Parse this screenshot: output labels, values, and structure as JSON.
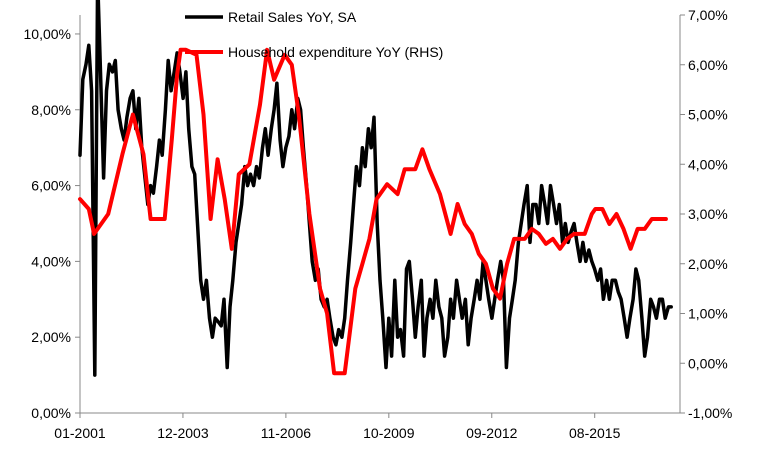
{
  "chart_data": {
    "type": "line",
    "x_ticks": [
      "01-2001",
      "12-2003",
      "11-2006",
      "10-2009",
      "09-2012",
      "08-2015"
    ],
    "y_left": {
      "ticks": [
        "0,00%",
        "2,00%",
        "4,00%",
        "6,00%",
        "8,00%",
        "10,00%"
      ],
      "range": [
        0,
        10.5
      ]
    },
    "y_right": {
      "ticks": [
        "-1,00%",
        "0,00%",
        "1,00%",
        "2,00%",
        "3,00%",
        "4,00%",
        "5,00%",
        "6,00%",
        "7,00%"
      ],
      "range": [
        -1,
        7
      ]
    },
    "grid": false,
    "legend_position": "top-center",
    "series": [
      {
        "name": "Retail Sales YoY, SA",
        "axis": "left",
        "color": "#000000",
        "points": [
          [
            2001.0,
            6.8
          ],
          [
            2001.08,
            8.8
          ],
          [
            2001.17,
            9.2
          ],
          [
            2001.25,
            9.7
          ],
          [
            2001.33,
            8.5
          ],
          [
            2001.42,
            1.0
          ],
          [
            2001.5,
            11.5
          ],
          [
            2001.58,
            9.0
          ],
          [
            2001.67,
            6.2
          ],
          [
            2001.75,
            8.5
          ],
          [
            2001.83,
            9.2
          ],
          [
            2001.92,
            9.0
          ],
          [
            2002.0,
            9.3
          ],
          [
            2002.08,
            8.0
          ],
          [
            2002.17,
            7.5
          ],
          [
            2002.25,
            7.2
          ],
          [
            2002.33,
            7.8
          ],
          [
            2002.42,
            8.3
          ],
          [
            2002.5,
            8.5
          ],
          [
            2002.58,
            7.5
          ],
          [
            2002.67,
            8.3
          ],
          [
            2002.75,
            7.0
          ],
          [
            2002.83,
            6.3
          ],
          [
            2002.92,
            5.5
          ],
          [
            2003.0,
            6.0
          ],
          [
            2003.08,
            5.8
          ],
          [
            2003.17,
            6.5
          ],
          [
            2003.25,
            7.2
          ],
          [
            2003.33,
            6.8
          ],
          [
            2003.42,
            8.0
          ],
          [
            2003.5,
            9.3
          ],
          [
            2003.58,
            8.5
          ],
          [
            2003.67,
            9.0
          ],
          [
            2003.75,
            9.5
          ],
          [
            2003.83,
            9.0
          ],
          [
            2003.92,
            8.3
          ],
          [
            2004.0,
            9.0
          ],
          [
            2004.08,
            7.5
          ],
          [
            2004.17,
            6.5
          ],
          [
            2004.25,
            6.3
          ],
          [
            2004.33,
            5.0
          ],
          [
            2004.42,
            3.5
          ],
          [
            2004.5,
            3.0
          ],
          [
            2004.58,
            3.5
          ],
          [
            2004.67,
            2.5
          ],
          [
            2004.75,
            2.0
          ],
          [
            2004.83,
            2.5
          ],
          [
            2004.92,
            2.4
          ],
          [
            2005.0,
            2.3
          ],
          [
            2005.08,
            3.0
          ],
          [
            2005.17,
            1.2
          ],
          [
            2005.25,
            2.8
          ],
          [
            2005.33,
            3.5
          ],
          [
            2005.42,
            4.5
          ],
          [
            2005.5,
            5.0
          ],
          [
            2005.58,
            5.5
          ],
          [
            2005.67,
            6.5
          ],
          [
            2005.75,
            6.0
          ],
          [
            2005.83,
            6.3
          ],
          [
            2005.92,
            6.0
          ],
          [
            2006.0,
            6.5
          ],
          [
            2006.08,
            6.2
          ],
          [
            2006.17,
            7.0
          ],
          [
            2006.25,
            7.5
          ],
          [
            2006.33,
            6.8
          ],
          [
            2006.42,
            7.5
          ],
          [
            2006.5,
            8.0
          ],
          [
            2006.58,
            8.7
          ],
          [
            2006.67,
            7.2
          ],
          [
            2006.75,
            6.5
          ],
          [
            2006.83,
            7.0
          ],
          [
            2006.92,
            7.3
          ],
          [
            2007.0,
            8.0
          ],
          [
            2007.08,
            7.5
          ],
          [
            2007.17,
            8.3
          ],
          [
            2007.25,
            8.0
          ],
          [
            2007.33,
            7.0
          ],
          [
            2007.42,
            6.0
          ],
          [
            2007.5,
            5.0
          ],
          [
            2007.58,
            4.0
          ],
          [
            2007.67,
            3.5
          ],
          [
            2007.75,
            3.8
          ],
          [
            2007.83,
            3.0
          ],
          [
            2007.92,
            2.8
          ],
          [
            2008.0,
            3.0
          ],
          [
            2008.08,
            2.5
          ],
          [
            2008.17,
            2.0
          ],
          [
            2008.25,
            1.8
          ],
          [
            2008.33,
            2.2
          ],
          [
            2008.42,
            2.0
          ],
          [
            2008.5,
            2.5
          ],
          [
            2008.58,
            3.5
          ],
          [
            2008.67,
            4.5
          ],
          [
            2008.75,
            5.5
          ],
          [
            2008.83,
            6.5
          ],
          [
            2008.92,
            6.0
          ],
          [
            2009.0,
            7.0
          ],
          [
            2009.08,
            6.5
          ],
          [
            2009.17,
            7.5
          ],
          [
            2009.25,
            7.0
          ],
          [
            2009.33,
            7.8
          ],
          [
            2009.42,
            5.0
          ],
          [
            2009.5,
            3.5
          ],
          [
            2009.58,
            2.5
          ],
          [
            2009.67,
            1.2
          ],
          [
            2009.75,
            2.5
          ],
          [
            2009.83,
            1.5
          ],
          [
            2009.92,
            3.5
          ],
          [
            2010.0,
            2.0
          ],
          [
            2010.08,
            2.2
          ],
          [
            2010.17,
            1.5
          ],
          [
            2010.25,
            3.8
          ],
          [
            2010.33,
            4.0
          ],
          [
            2010.42,
            3.0
          ],
          [
            2010.5,
            2.0
          ],
          [
            2010.58,
            2.8
          ],
          [
            2010.67,
            3.5
          ],
          [
            2010.75,
            1.5
          ],
          [
            2010.83,
            2.5
          ],
          [
            2010.92,
            3.0
          ],
          [
            2011.0,
            2.5
          ],
          [
            2011.08,
            3.5
          ],
          [
            2011.17,
            2.8
          ],
          [
            2011.25,
            2.5
          ],
          [
            2011.33,
            1.5
          ],
          [
            2011.42,
            2.0
          ],
          [
            2011.5,
            3.0
          ],
          [
            2011.58,
            2.5
          ],
          [
            2011.67,
            3.5
          ],
          [
            2011.75,
            3.0
          ],
          [
            2011.83,
            2.5
          ],
          [
            2011.92,
            3.0
          ],
          [
            2012.0,
            1.8
          ],
          [
            2012.08,
            2.5
          ],
          [
            2012.17,
            3.0
          ],
          [
            2012.25,
            3.5
          ],
          [
            2012.33,
            3.0
          ],
          [
            2012.42,
            4.0
          ],
          [
            2012.5,
            3.5
          ],
          [
            2012.58,
            3.0
          ],
          [
            2012.67,
            2.5
          ],
          [
            2012.75,
            3.0
          ],
          [
            2012.83,
            3.5
          ],
          [
            2012.92,
            4.0
          ],
          [
            2013.0,
            3.5
          ],
          [
            2013.08,
            1.2
          ],
          [
            2013.17,
            2.5
          ],
          [
            2013.25,
            3.0
          ],
          [
            2013.33,
            3.5
          ],
          [
            2013.42,
            4.5
          ],
          [
            2013.5,
            5.0
          ],
          [
            2013.58,
            5.5
          ],
          [
            2013.67,
            6.0
          ],
          [
            2013.75,
            4.5
          ],
          [
            2013.83,
            5.5
          ],
          [
            2013.92,
            5.5
          ],
          [
            2014.0,
            5.0
          ],
          [
            2014.08,
            6.0
          ],
          [
            2014.17,
            5.5
          ],
          [
            2014.25,
            5.0
          ],
          [
            2014.33,
            6.0
          ],
          [
            2014.42,
            5.5
          ],
          [
            2014.5,
            5.0
          ],
          [
            2014.58,
            5.5
          ],
          [
            2014.67,
            4.5
          ],
          [
            2014.75,
            5.0
          ],
          [
            2014.83,
            4.5
          ],
          [
            2014.92,
            4.8
          ],
          [
            2015.0,
            5.0
          ],
          [
            2015.08,
            4.5
          ],
          [
            2015.17,
            4.0
          ],
          [
            2015.25,
            4.5
          ],
          [
            2015.33,
            4.0
          ],
          [
            2015.42,
            4.3
          ],
          [
            2015.5,
            4.0
          ],
          [
            2015.58,
            3.8
          ],
          [
            2015.67,
            3.5
          ],
          [
            2015.75,
            3.8
          ],
          [
            2015.83,
            3.0
          ],
          [
            2015.92,
            3.5
          ],
          [
            2016.0,
            3.0
          ],
          [
            2016.08,
            3.5
          ],
          [
            2016.17,
            3.5
          ],
          [
            2016.25,
            3.2
          ],
          [
            2016.33,
            3.0
          ],
          [
            2016.42,
            2.5
          ],
          [
            2016.5,
            2.0
          ],
          [
            2016.58,
            2.5
          ],
          [
            2016.67,
            3.0
          ],
          [
            2016.75,
            3.8
          ],
          [
            2016.83,
            3.5
          ],
          [
            2016.92,
            2.5
          ],
          [
            2017.0,
            1.5
          ],
          [
            2017.08,
            2.0
          ],
          [
            2017.17,
            3.0
          ],
          [
            2017.25,
            2.8
          ],
          [
            2017.33,
            2.5
          ],
          [
            2017.42,
            3.0
          ],
          [
            2017.5,
            3.0
          ],
          [
            2017.58,
            2.5
          ],
          [
            2017.67,
            2.8
          ],
          [
            2017.75,
            2.8
          ]
        ]
      },
      {
        "name": "Household expenditure YoY (RHS)",
        "axis": "right",
        "color": "#ff0000",
        "points": [
          [
            2001.0,
            3.3
          ],
          [
            2001.25,
            3.1
          ],
          [
            2001.4,
            2.6
          ],
          [
            2001.8,
            3.0
          ],
          [
            2002.2,
            4.2
          ],
          [
            2002.5,
            5.0
          ],
          [
            2002.8,
            4.2
          ],
          [
            2003.0,
            2.9
          ],
          [
            2003.4,
            2.9
          ],
          [
            2003.6,
            4.5
          ],
          [
            2003.75,
            5.8
          ],
          [
            2003.85,
            6.3
          ],
          [
            2004.0,
            6.3
          ],
          [
            2004.3,
            6.2
          ],
          [
            2004.5,
            5.0
          ],
          [
            2004.7,
            2.9
          ],
          [
            2004.9,
            4.1
          ],
          [
            2005.1,
            3.3
          ],
          [
            2005.3,
            2.3
          ],
          [
            2005.5,
            3.8
          ],
          [
            2005.8,
            4.0
          ],
          [
            2006.1,
            5.2
          ],
          [
            2006.3,
            6.3
          ],
          [
            2006.5,
            5.7
          ],
          [
            2006.8,
            6.2
          ],
          [
            2007.0,
            6.0
          ],
          [
            2007.2,
            5.0
          ],
          [
            2007.5,
            3.0
          ],
          [
            2007.8,
            1.5
          ],
          [
            2008.0,
            1.0
          ],
          [
            2008.2,
            -0.2
          ],
          [
            2008.5,
            -0.2
          ],
          [
            2008.8,
            1.5
          ],
          [
            2009.0,
            2.0
          ],
          [
            2009.2,
            2.5
          ],
          [
            2009.4,
            3.3
          ],
          [
            2009.7,
            3.6
          ],
          [
            2010.0,
            3.4
          ],
          [
            2010.2,
            3.9
          ],
          [
            2010.5,
            3.9
          ],
          [
            2010.7,
            4.3
          ],
          [
            2010.9,
            3.9
          ],
          [
            2011.2,
            3.4
          ],
          [
            2011.5,
            2.6
          ],
          [
            2011.7,
            3.2
          ],
          [
            2011.9,
            2.8
          ],
          [
            2012.1,
            2.6
          ],
          [
            2012.3,
            2.2
          ],
          [
            2012.5,
            2.0
          ],
          [
            2012.7,
            1.5
          ],
          [
            2012.9,
            1.3
          ],
          [
            2013.1,
            2.0
          ],
          [
            2013.3,
            2.5
          ],
          [
            2013.6,
            2.5
          ],
          [
            2013.8,
            2.7
          ],
          [
            2014.0,
            2.6
          ],
          [
            2014.2,
            2.4
          ],
          [
            2014.4,
            2.5
          ],
          [
            2014.6,
            2.3
          ],
          [
            2014.8,
            2.5
          ],
          [
            2015.0,
            2.6
          ],
          [
            2015.3,
            2.6
          ],
          [
            2015.5,
            3.0
          ],
          [
            2015.6,
            3.1
          ],
          [
            2015.8,
            3.1
          ],
          [
            2016.0,
            2.8
          ],
          [
            2016.2,
            3.0
          ],
          [
            2016.4,
            2.7
          ],
          [
            2016.6,
            2.3
          ],
          [
            2016.8,
            2.7
          ],
          [
            2017.0,
            2.7
          ],
          [
            2017.2,
            2.9
          ],
          [
            2017.6,
            2.9
          ]
        ]
      }
    ]
  }
}
